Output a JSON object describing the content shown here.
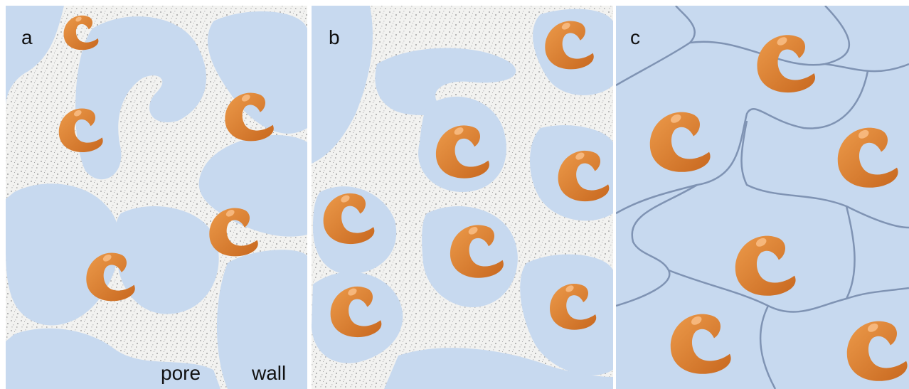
{
  "panels": [
    {
      "label": "a",
      "annotations": [
        "pore",
        "wall"
      ]
    },
    {
      "label": "b"
    },
    {
      "label": "c"
    }
  ]
}
